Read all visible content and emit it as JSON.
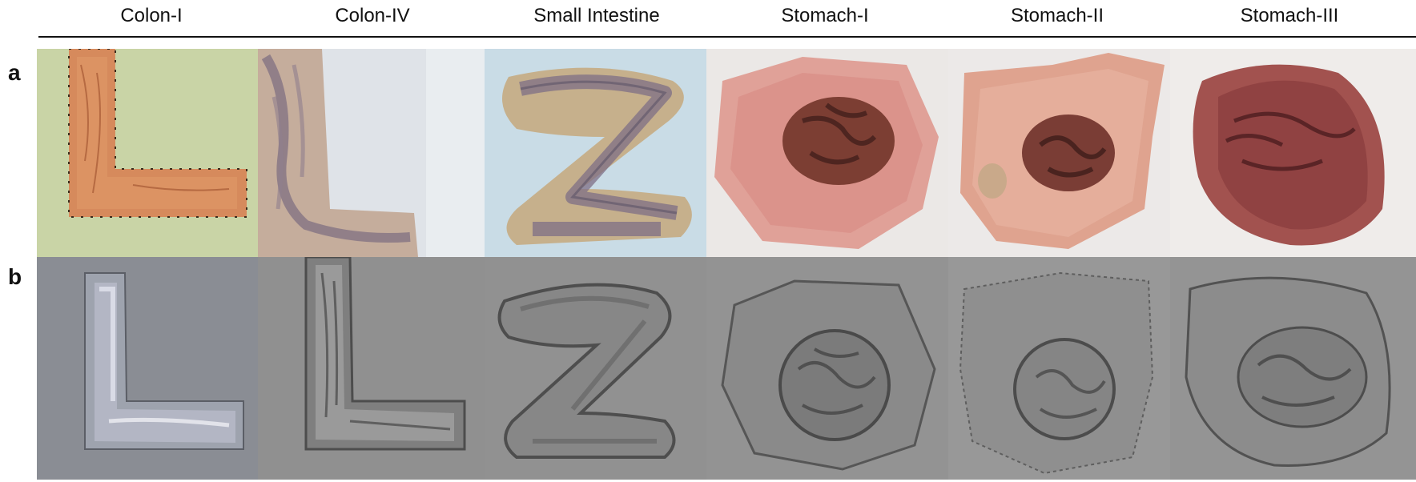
{
  "columns": [
    {
      "title": "Colon-I"
    },
    {
      "title": "Colon-IV"
    },
    {
      "title": "Small Intestine"
    },
    {
      "title": "Stomach-I"
    },
    {
      "title": "Stomach-II"
    },
    {
      "title": "Stomach-III"
    }
  ],
  "rows": [
    {
      "label": "a"
    },
    {
      "label": "b"
    }
  ],
  "colors": {
    "tissue_orange": "#d98a5e",
    "tissue_purple": "#8e7f8c",
    "tissue_pink": "#d99a93",
    "recon_gray": "#8e8e8e",
    "recon_bg_light": "#9aa0a8"
  }
}
